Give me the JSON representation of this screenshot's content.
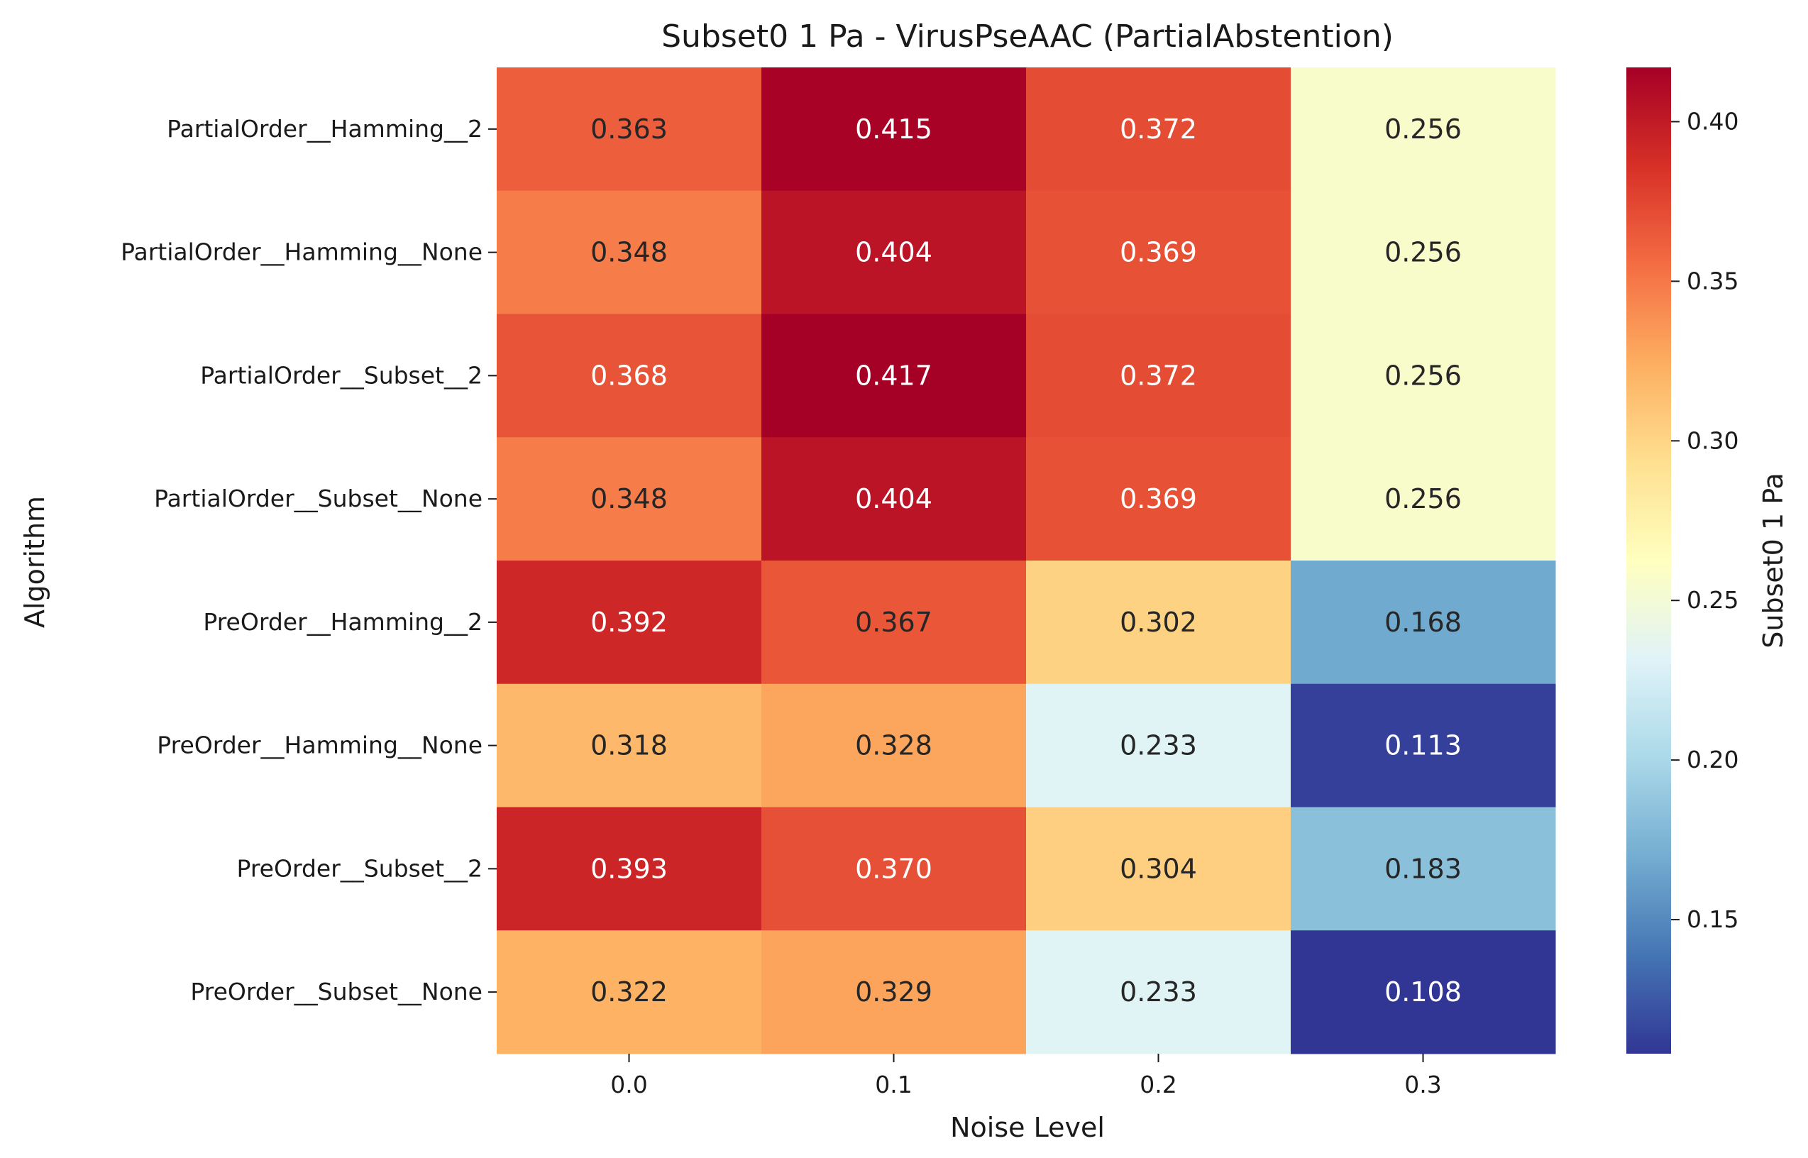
{
  "chart_data": {
    "type": "heatmap",
    "title": "Subset0 1 Pa - VirusPseAAC (PartialAbstention)",
    "xlabel": "Noise Level",
    "ylabel": "Algorithm",
    "colorbar_label": "Subset0 1 Pa",
    "colormap": "RdYlBu_r",
    "x_categories": [
      "0.0",
      "0.1",
      "0.2",
      "0.3"
    ],
    "y_categories": [
      "PartialOrder__Hamming__2",
      "PartialOrder__Hamming__None",
      "PartialOrder__Subset__2",
      "PartialOrder__Subset__None",
      "PreOrder__Hamming__2",
      "PreOrder__Hamming__None",
      "PreOrder__Subset__2",
      "PreOrder__Subset__None"
    ],
    "values": [
      [
        0.363,
        0.415,
        0.372,
        0.256
      ],
      [
        0.348,
        0.404,
        0.369,
        0.256
      ],
      [
        0.368,
        0.417,
        0.372,
        0.256
      ],
      [
        0.348,
        0.404,
        0.369,
        0.256
      ],
      [
        0.392,
        0.367,
        0.302,
        0.168
      ],
      [
        0.318,
        0.328,
        0.233,
        0.113
      ],
      [
        0.393,
        0.37,
        0.304,
        0.183
      ],
      [
        0.322,
        0.329,
        0.233,
        0.108
      ]
    ],
    "value_format": "3 decimals",
    "colorbar_range": [
      0.108,
      0.417
    ],
    "colorbar_ticks": [
      "0.15",
      "0.20",
      "0.25",
      "0.30",
      "0.35",
      "0.40"
    ]
  }
}
